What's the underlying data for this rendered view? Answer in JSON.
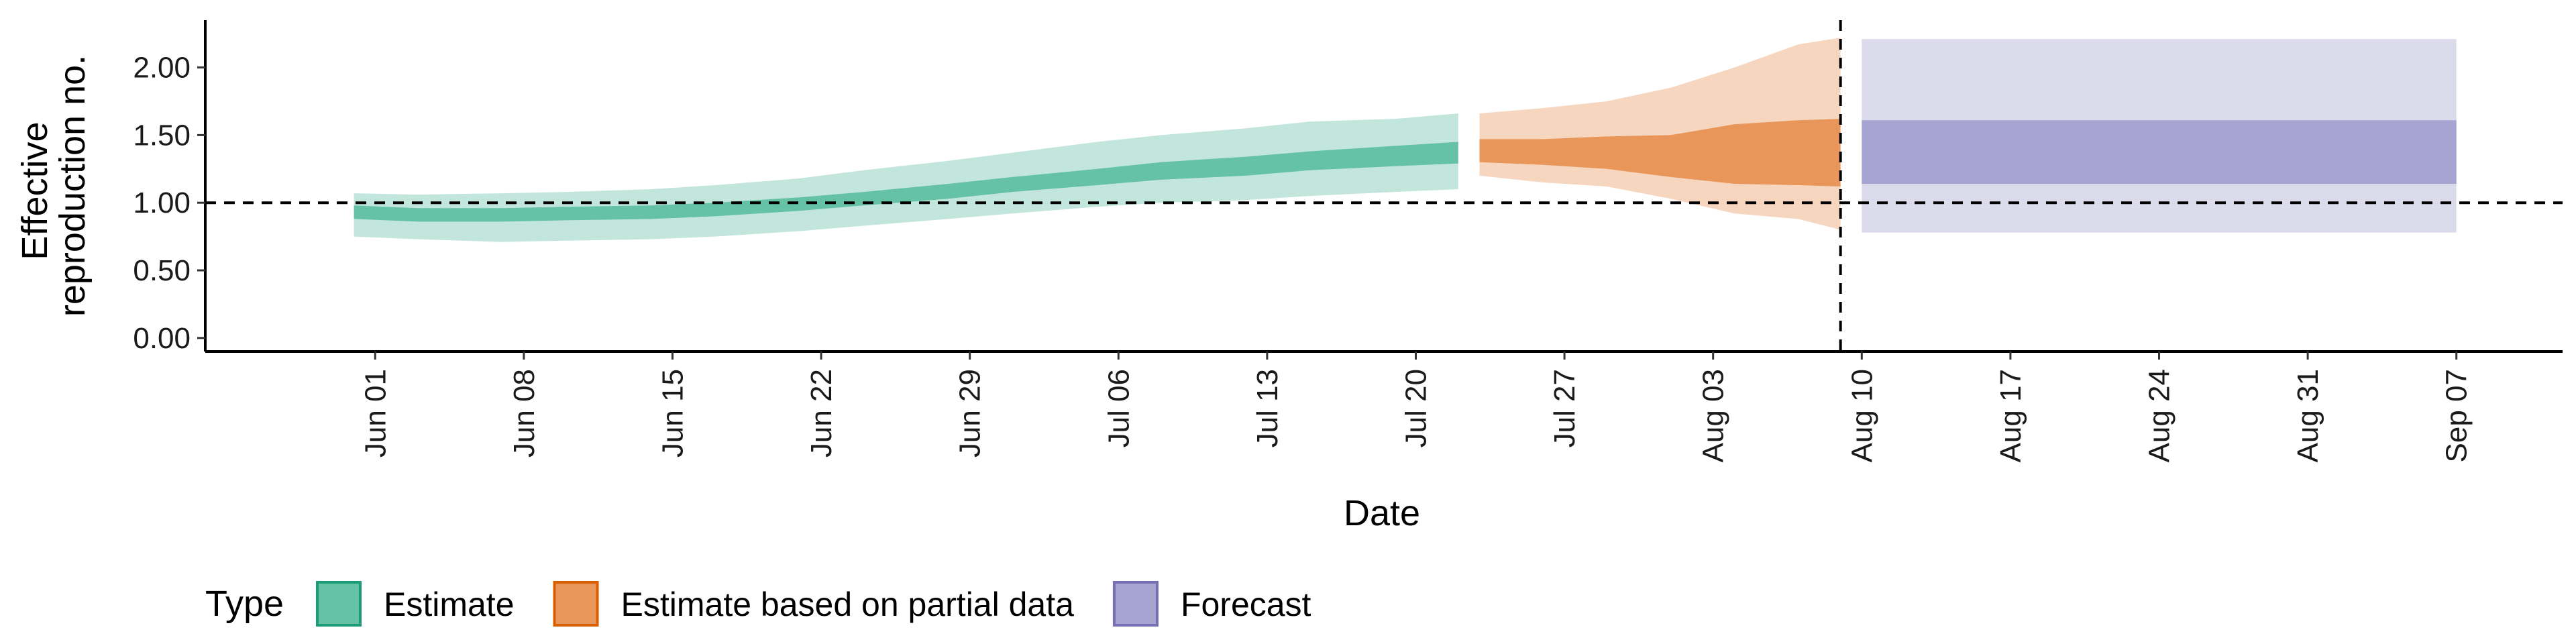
{
  "chart_data": {
    "type": "area",
    "xlabel": "Date",
    "ylabel_lines": [
      "Effective",
      "reproduction no."
    ],
    "y_ticks": [
      {
        "value": 0.0,
        "label": "0.00"
      },
      {
        "value": 0.5,
        "label": "0.50"
      },
      {
        "value": 1.0,
        "label": "1.00"
      },
      {
        "value": 1.5,
        "label": "1.50"
      },
      {
        "value": 2.0,
        "label": "2.00"
      }
    ],
    "ylim": [
      -0.1,
      2.35
    ],
    "xlim": [
      "2020-05-24",
      "2020-09-12"
    ],
    "x_ticks": [
      {
        "date": "2020-06-01",
        "label": "Jun 01"
      },
      {
        "date": "2020-06-08",
        "label": "Jun 08"
      },
      {
        "date": "2020-06-15",
        "label": "Jun 15"
      },
      {
        "date": "2020-06-22",
        "label": "Jun 22"
      },
      {
        "date": "2020-06-29",
        "label": "Jun 29"
      },
      {
        "date": "2020-07-06",
        "label": "Jul 06"
      },
      {
        "date": "2020-07-13",
        "label": "Jul 13"
      },
      {
        "date": "2020-07-20",
        "label": "Jul 20"
      },
      {
        "date": "2020-07-27",
        "label": "Jul 27"
      },
      {
        "date": "2020-08-03",
        "label": "Aug 03"
      },
      {
        "date": "2020-08-10",
        "label": "Aug 10"
      },
      {
        "date": "2020-08-17",
        "label": "Aug 17"
      },
      {
        "date": "2020-08-24",
        "label": "Aug 24"
      },
      {
        "date": "2020-08-31",
        "label": "Aug 31"
      },
      {
        "date": "2020-09-07",
        "label": "Sep 07"
      }
    ],
    "reference_hline": 1.0,
    "reference_vline": "2020-08-09",
    "legend": {
      "title": "Type",
      "placement": "bottom-left",
      "entries": [
        {
          "label": "Estimate",
          "fill": "#66c2a5",
          "border": "#1b9e77"
        },
        {
          "label": "Estimate based on partial data",
          "fill": "#e8965a",
          "border": "#d95f02"
        },
        {
          "label": "Forecast",
          "fill": "#a8a4d2",
          "border": "#7570b3"
        }
      ]
    },
    "series": [
      {
        "type_key": "Estimate",
        "color": "#66c2a5",
        "outer_color": "#c3e6dc",
        "points": [
          {
            "date": "2020-05-31",
            "lower90": 0.75,
            "lower50": 0.88,
            "upper50": 0.98,
            "upper90": 1.07
          },
          {
            "date": "2020-06-03",
            "lower90": 0.73,
            "lower50": 0.86,
            "upper50": 0.96,
            "upper90": 1.06
          },
          {
            "date": "2020-06-07",
            "lower90": 0.71,
            "lower50": 0.86,
            "upper50": 0.96,
            "upper90": 1.07
          },
          {
            "date": "2020-06-10",
            "lower90": 0.72,
            "lower50": 0.87,
            "upper50": 0.97,
            "upper90": 1.08
          },
          {
            "date": "2020-06-14",
            "lower90": 0.73,
            "lower50": 0.88,
            "upper50": 0.98,
            "upper90": 1.1
          },
          {
            "date": "2020-06-17",
            "lower90": 0.75,
            "lower50": 0.9,
            "upper50": 1.0,
            "upper90": 1.13
          },
          {
            "date": "2020-06-21",
            "lower90": 0.79,
            "lower50": 0.94,
            "upper50": 1.04,
            "upper90": 1.18
          },
          {
            "date": "2020-06-24",
            "lower90": 0.83,
            "lower50": 0.98,
            "upper50": 1.08,
            "upper90": 1.24
          },
          {
            "date": "2020-06-28",
            "lower90": 0.88,
            "lower50": 1.03,
            "upper50": 1.14,
            "upper90": 1.31
          },
          {
            "date": "2020-07-01",
            "lower90": 0.92,
            "lower50": 1.08,
            "upper50": 1.19,
            "upper90": 1.37
          },
          {
            "date": "2020-07-05",
            "lower90": 0.97,
            "lower50": 1.13,
            "upper50": 1.25,
            "upper90": 1.45
          },
          {
            "date": "2020-07-08",
            "lower90": 1.0,
            "lower50": 1.17,
            "upper50": 1.3,
            "upper90": 1.5
          },
          {
            "date": "2020-07-12",
            "lower90": 1.02,
            "lower50": 1.2,
            "upper50": 1.34,
            "upper90": 1.55
          },
          {
            "date": "2020-07-15",
            "lower90": 1.05,
            "lower50": 1.24,
            "upper50": 1.38,
            "upper90": 1.6
          },
          {
            "date": "2020-07-19",
            "lower90": 1.08,
            "lower50": 1.27,
            "upper50": 1.42,
            "upper90": 1.62
          },
          {
            "date": "2020-07-22",
            "lower90": 1.1,
            "lower50": 1.29,
            "upper50": 1.45,
            "upper90": 1.66
          }
        ]
      },
      {
        "type_key": "Estimate based on partial data",
        "color": "#e8965a",
        "outer_color": "#f6d6bf",
        "points": [
          {
            "date": "2020-07-23",
            "lower90": 1.2,
            "lower50": 1.3,
            "upper50": 1.47,
            "upper90": 1.66
          },
          {
            "date": "2020-07-26",
            "lower90": 1.15,
            "lower50": 1.28,
            "upper50": 1.47,
            "upper90": 1.7
          },
          {
            "date": "2020-07-29",
            "lower90": 1.12,
            "lower50": 1.25,
            "upper50": 1.49,
            "upper90": 1.75
          },
          {
            "date": "2020-08-01",
            "lower90": 1.03,
            "lower50": 1.19,
            "upper50": 1.5,
            "upper90": 1.85
          },
          {
            "date": "2020-08-04",
            "lower90": 0.92,
            "lower50": 1.14,
            "upper50": 1.58,
            "upper90": 2.0
          },
          {
            "date": "2020-08-07",
            "lower90": 0.88,
            "lower50": 1.13,
            "upper50": 1.61,
            "upper90": 2.17
          },
          {
            "date": "2020-08-09",
            "lower90": 0.8,
            "lower50": 1.12,
            "upper50": 1.62,
            "upper90": 2.22
          }
        ]
      },
      {
        "type_key": "Forecast",
        "color": "#a8a4d2",
        "outer_color": "#dcdbec",
        "points": [
          {
            "date": "2020-08-10",
            "lower90": 0.78,
            "lower50": 1.14,
            "upper50": 1.61,
            "upper90": 2.21
          },
          {
            "date": "2020-09-07",
            "lower90": 0.78,
            "lower50": 1.14,
            "upper50": 1.61,
            "upper90": 2.21
          }
        ]
      }
    ]
  }
}
